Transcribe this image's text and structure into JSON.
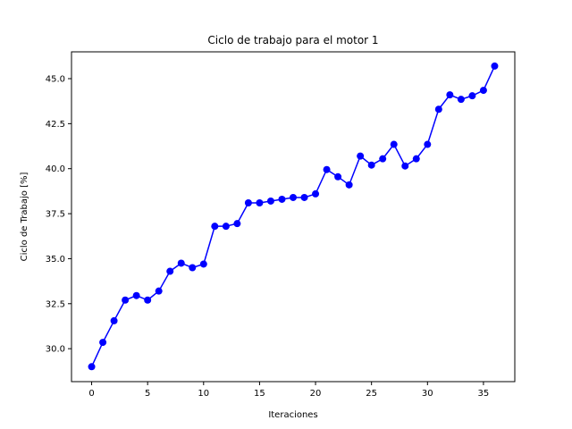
{
  "chart_data": {
    "type": "line",
    "title": "Ciclo de trabajo para el motor 1",
    "xlabel": "Iteraciones",
    "ylabel": "Ciclo de Trabajo [%]",
    "xlim": [
      -1.8,
      37.8
    ],
    "ylim": [
      28.17,
      46.49
    ],
    "x_ticks": [
      0,
      5,
      10,
      15,
      20,
      25,
      30,
      35
    ],
    "x_tick_labels": [
      "0",
      "5",
      "10",
      "15",
      "20",
      "25",
      "30",
      "35"
    ],
    "y_ticks": [
      30.0,
      32.5,
      35.0,
      37.5,
      40.0,
      42.5,
      45.0
    ],
    "y_tick_labels": [
      "30.0",
      "32.5",
      "35.0",
      "37.5",
      "40.0",
      "42.5",
      "45.0"
    ],
    "grid": false,
    "series": [
      {
        "color": "#0000ff",
        "marker": "circle",
        "x": [
          0,
          1,
          2,
          3,
          4,
          5,
          6,
          7,
          8,
          9,
          10,
          11,
          12,
          13,
          14,
          15,
          16,
          17,
          18,
          19,
          20,
          21,
          22,
          23,
          24,
          25,
          26,
          27,
          28,
          29,
          30,
          31,
          32,
          33,
          34,
          35,
          36
        ],
        "values": [
          29.0,
          30.35,
          31.55,
          32.7,
          32.95,
          32.7,
          33.2,
          34.3,
          34.75,
          34.5,
          34.7,
          36.8,
          36.8,
          36.95,
          38.1,
          38.1,
          38.2,
          38.3,
          38.4,
          38.4,
          38.6,
          39.95,
          39.55,
          39.1,
          40.7,
          40.2,
          40.55,
          41.35,
          40.15,
          40.55,
          41.35,
          43.3,
          44.1,
          43.85,
          44.05,
          44.35,
          45.7
        ]
      }
    ]
  }
}
